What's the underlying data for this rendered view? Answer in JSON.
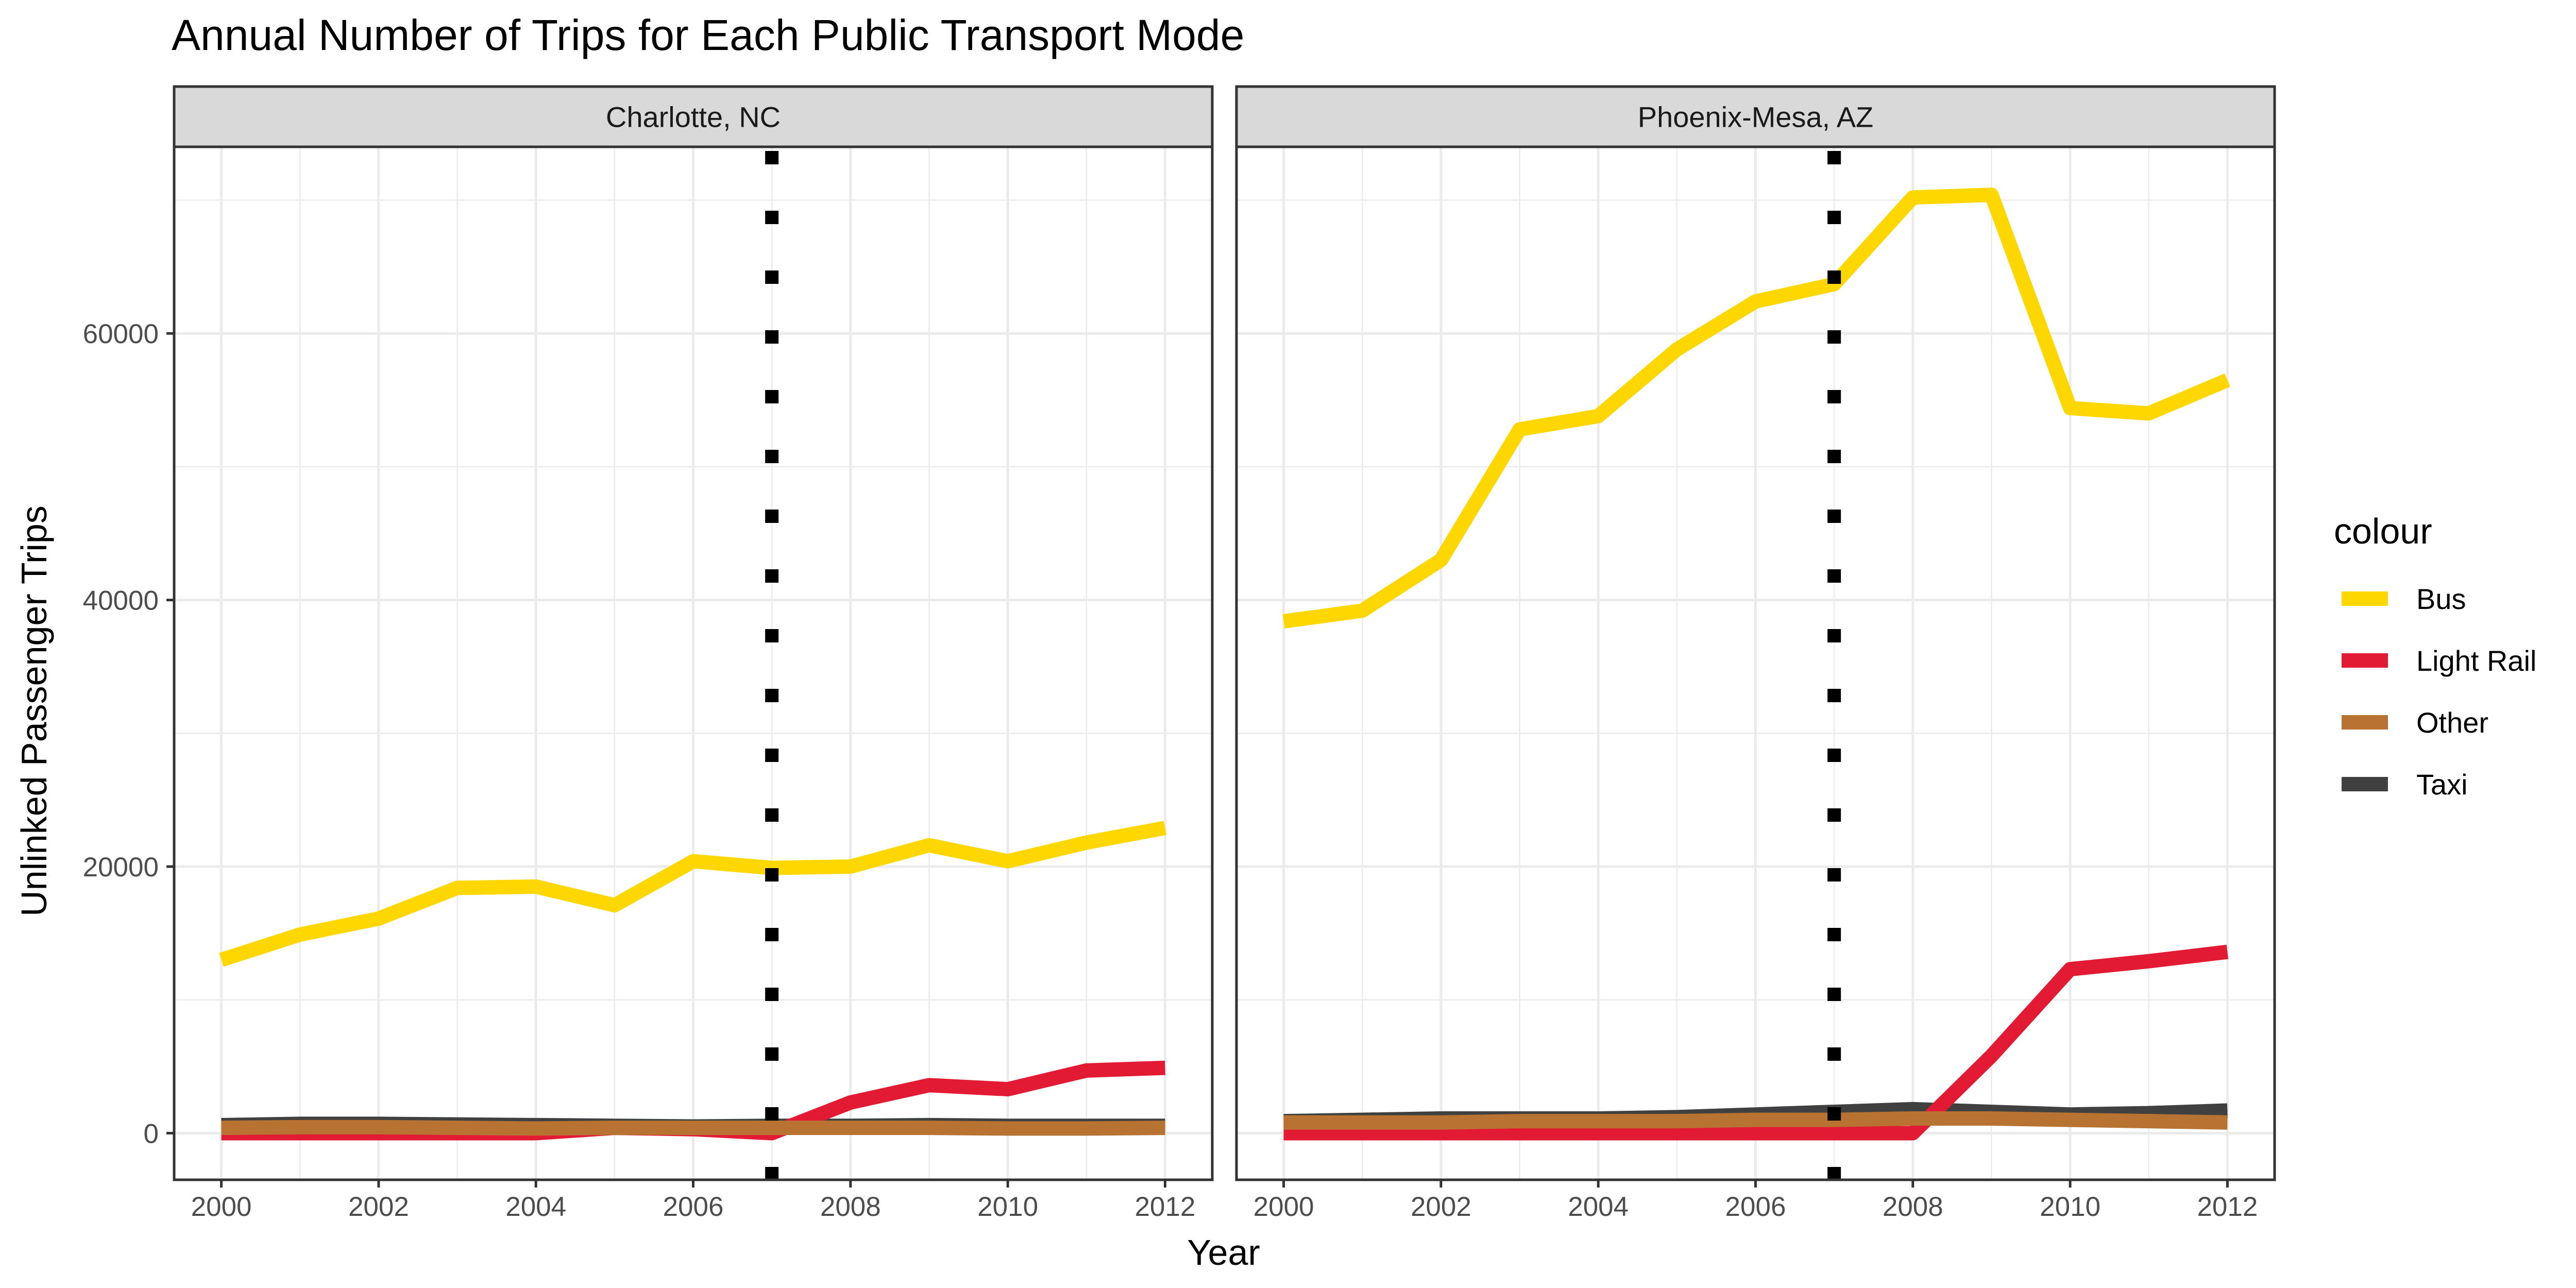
{
  "chart_data": {
    "type": "line",
    "title": "Annual Number of Trips for Each Public Transport Mode",
    "xlabel": "Year",
    "ylabel": "Unlinked Passenger Trips",
    "xlim": [
      1999.4,
      2012.6
    ],
    "ylim": [
      -3500,
      74000
    ],
    "x_ticks": [
      "2000",
      "2002",
      "2004",
      "2006",
      "2008",
      "2010",
      "2012"
    ],
    "y_ticks": [
      "0",
      "20000",
      "40000",
      "60000"
    ],
    "grid": true,
    "reference_line": {
      "x": 2007,
      "style": "dotted"
    },
    "legend": {
      "title": "colour",
      "position": "right",
      "entries": [
        {
          "label": "Bus",
          "color": "#FFD700"
        },
        {
          "label": "Light Rail",
          "color": "#E31A33"
        },
        {
          "label": "Other",
          "color": "#B87333"
        },
        {
          "label": "Taxi",
          "color": "#404040"
        }
      ]
    },
    "x": [
      2000,
      2001,
      2002,
      2003,
      2004,
      2005,
      2006,
      2007,
      2008,
      2009,
      2010,
      2011,
      2012
    ],
    "panels": [
      {
        "label": "Charlotte, NC",
        "series": [
          {
            "name": "Taxi",
            "color": "#404040",
            "values": [
              600,
              700,
              700,
              650,
              600,
              550,
              500,
              550,
              550,
              600,
              550,
              550,
              550
            ]
          },
          {
            "name": "Light Rail",
            "color": "#E31A33",
            "values": [
              0,
              0,
              0,
              0,
              0,
              400,
              300,
              0,
              2300,
              3600,
              3300,
              4700,
              4900
            ]
          },
          {
            "name": "Other",
            "color": "#B87333",
            "values": [
              400,
              450,
              450,
              400,
              350,
              400,
              400,
              400,
              400,
              400,
              350,
              350,
              400
            ]
          },
          {
            "name": "Bus",
            "color": "#FFD700",
            "values": [
              13000,
              14900,
              16100,
              18400,
              18500,
              17100,
              20400,
              19900,
              20000,
              21600,
              20400,
              21800,
              22900
            ]
          }
        ]
      },
      {
        "label": "Phoenix-Mesa, AZ",
        "series": [
          {
            "name": "Taxi",
            "color": "#404040",
            "values": [
              900,
              1000,
              1100,
              1100,
              1100,
              1200,
              1400,
              1600,
              1800,
              1600,
              1400,
              1500,
              1700
            ]
          },
          {
            "name": "Light Rail",
            "color": "#E31A33",
            "values": [
              0,
              0,
              0,
              0,
              0,
              0,
              0,
              0,
              0,
              5800,
              12300,
              12900,
              13600
            ]
          },
          {
            "name": "Other",
            "color": "#B87333",
            "values": [
              800,
              800,
              800,
              900,
              900,
              900,
              1000,
              1000,
              1100,
              1100,
              1000,
              900,
              800
            ]
          },
          {
            "name": "Bus",
            "color": "#FFD700",
            "values": [
              38400,
              39200,
              43000,
              52800,
              53800,
              58800,
              62400,
              63700,
              70200,
              70400,
              54400,
              54000,
              56500
            ]
          }
        ]
      }
    ]
  }
}
